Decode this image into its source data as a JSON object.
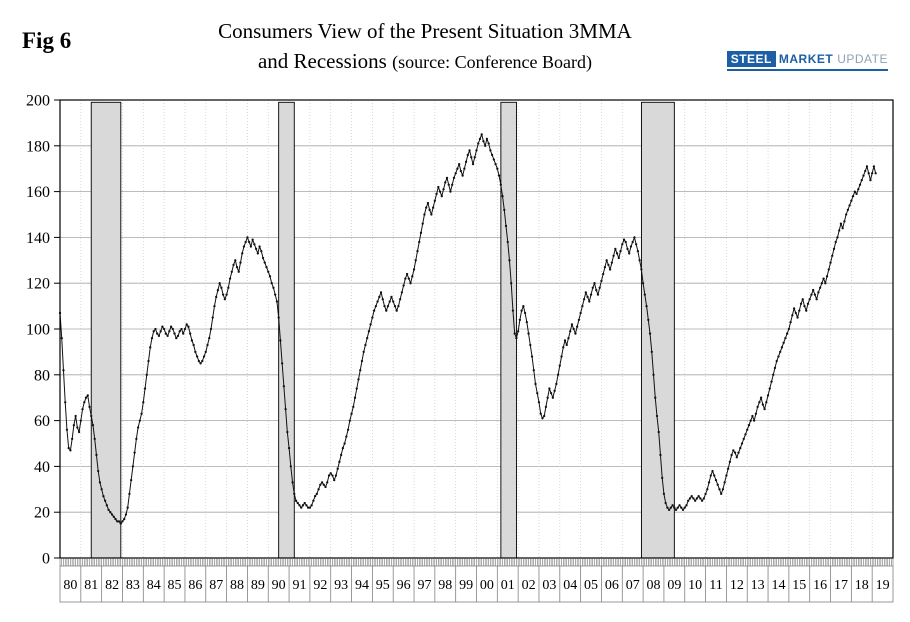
{
  "fig_label": "Fig 6",
  "title": {
    "line1": "Consumers View of the Present Situation 3MMA",
    "line2_main": "and Recessions ",
    "line2_sub": "(source: Conference Board)"
  },
  "logo": {
    "steel": "STEEL",
    "market": "MARKET",
    "update": "UPDATE",
    "blue": "#1d5fa5",
    "gray": "#8fa3b6"
  },
  "chart_data": {
    "type": "line",
    "title": "Consumers View of the Present Situation 3MMA and Recessions (source: Conference Board)",
    "xlabel": "",
    "ylabel": "",
    "ylim": [
      0,
      200
    ],
    "ytick_step": 20,
    "ytick_labels": [
      "0",
      "20",
      "40",
      "60",
      "80",
      "100",
      "120",
      "140",
      "160",
      "180",
      "200"
    ],
    "x_start_year": 1980,
    "x_end_year": 2020,
    "xtick_labels": [
      "80",
      "81",
      "82",
      "83",
      "84",
      "85",
      "86",
      "87",
      "88",
      "89",
      "90",
      "91",
      "92",
      "93",
      "94",
      "95",
      "96",
      "97",
      "98",
      "99",
      "00",
      "01",
      "02",
      "03",
      "04",
      "05",
      "06",
      "07",
      "08",
      "09",
      "10",
      "11",
      "12",
      "13",
      "14",
      "15",
      "16",
      "17",
      "18",
      "19"
    ],
    "grid": true,
    "legend": "none",
    "line_color": "#111111",
    "recession_fill": "#d9d9d9",
    "recession_border": "#000000",
    "recessions": [
      {
        "start": 1981.5,
        "end": 1982.92
      },
      {
        "start": 1990.5,
        "end": 1991.25
      },
      {
        "start": 2001.17,
        "end": 2001.92
      },
      {
        "start": 2007.92,
        "end": 2009.5
      }
    ],
    "series": [
      {
        "name": "Consumer Present Situation 3MMA",
        "frequency": "monthly",
        "start": "1980-01",
        "values": [
          107,
          96,
          82,
          68,
          56,
          48,
          47,
          52,
          58,
          62,
          57,
          55,
          60,
          65,
          68,
          70,
          71,
          66,
          62,
          58,
          52,
          45,
          38,
          33,
          30,
          27,
          25,
          23,
          21,
          20,
          19,
          18,
          17,
          16,
          16,
          15,
          16,
          17,
          19,
          22,
          28,
          34,
          40,
          46,
          52,
          57,
          60,
          63,
          68,
          74,
          80,
          86,
          92,
          96,
          99,
          100,
          98,
          97,
          99,
          101,
          100,
          98,
          97,
          99,
          101,
          100,
          98,
          96,
          97,
          99,
          100,
          98,
          100,
          102,
          101,
          98,
          95,
          93,
          90,
          88,
          86,
          85,
          86,
          88,
          90,
          93,
          96,
          100,
          105,
          110,
          114,
          117,
          120,
          118,
          115,
          113,
          115,
          118,
          122,
          125,
          128,
          130,
          127,
          125,
          129,
          133,
          136,
          138,
          140,
          138,
          136,
          139,
          137,
          135,
          133,
          136,
          134,
          131,
          129,
          127,
          125,
          123,
          120,
          118,
          115,
          112,
          105,
          95,
          85,
          75,
          65,
          55,
          48,
          40,
          33,
          28,
          25,
          24,
          23,
          22,
          23,
          24,
          23,
          22,
          22,
          23,
          25,
          27,
          28,
          30,
          32,
          33,
          32,
          31,
          33,
          36,
          37,
          36,
          34,
          36,
          39,
          42,
          45,
          48,
          50,
          53,
          56,
          60,
          63,
          66,
          70,
          74,
          78,
          82,
          86,
          90,
          93,
          96,
          99,
          102,
          105,
          108,
          110,
          112,
          114,
          116,
          113,
          110,
          108,
          110,
          112,
          114,
          112,
          110,
          108,
          110,
          113,
          116,
          119,
          122,
          124,
          122,
          120,
          123,
          126,
          130,
          134,
          138,
          142,
          146,
          150,
          153,
          155,
          152,
          150,
          153,
          156,
          159,
          162,
          160,
          158,
          161,
          164,
          166,
          163,
          160,
          163,
          166,
          168,
          170,
          172,
          169,
          167,
          170,
          173,
          176,
          178,
          175,
          172,
          175,
          178,
          181,
          183,
          185,
          182,
          180,
          183,
          181,
          178,
          176,
          174,
          172,
          170,
          167,
          163,
          158,
          152,
          145,
          138,
          130,
          120,
          108,
          98,
          96,
          99,
          104,
          108,
          110,
          107,
          103,
          98,
          93,
          88,
          82,
          76,
          72,
          68,
          63,
          61,
          62,
          66,
          70,
          74,
          72,
          70,
          73,
          76,
          80,
          84,
          88,
          92,
          95,
          93,
          96,
          99,
          102,
          100,
          98,
          101,
          104,
          107,
          110,
          113,
          116,
          114,
          112,
          115,
          118,
          120,
          117,
          115,
          118,
          121,
          124,
          127,
          130,
          128,
          126,
          129,
          132,
          135,
          133,
          131,
          134,
          137,
          139,
          138,
          135,
          133,
          136,
          138,
          140,
          137,
          134,
          130,
          126,
          120,
          115,
          110,
          104,
          98,
          90,
          80,
          70,
          62,
          55,
          45,
          35,
          28,
          24,
          22,
          21,
          22,
          23,
          22,
          21,
          22,
          23,
          22,
          21,
          22,
          23,
          25,
          26,
          27,
          26,
          25,
          26,
          27,
          26,
          25,
          26,
          28,
          30,
          33,
          36,
          38,
          36,
          34,
          32,
          30,
          28,
          30,
          33,
          36,
          39,
          42,
          45,
          47,
          46,
          44,
          46,
          48,
          50,
          52,
          54,
          56,
          58,
          60,
          62,
          60,
          63,
          66,
          68,
          70,
          67,
          65,
          68,
          71,
          74,
          77,
          80,
          83,
          86,
          88,
          90,
          92,
          94,
          96,
          98,
          100,
          103,
          106,
          109,
          107,
          105,
          108,
          111,
          113,
          110,
          108,
          111,
          113,
          115,
          117,
          115,
          113,
          116,
          118,
          120,
          122,
          120,
          123,
          126,
          129,
          132,
          135,
          138,
          140,
          143,
          146,
          144,
          147,
          150,
          152,
          154,
          156,
          158,
          160,
          159,
          161,
          163,
          165,
          167,
          169,
          171,
          168,
          165,
          168,
          171,
          168
        ]
      }
    ]
  }
}
